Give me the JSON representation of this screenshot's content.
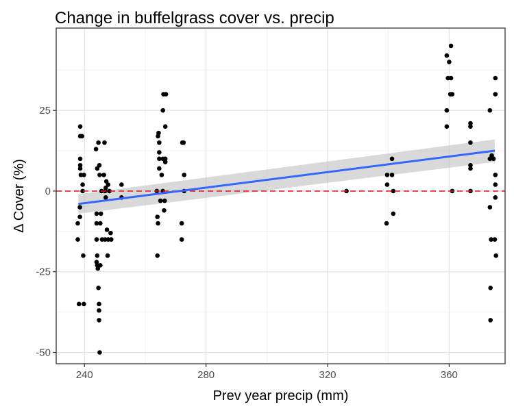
{
  "chart_data": {
    "type": "scatter",
    "title": "Change in buffelgrass cover vs. precip",
    "xlabel": "Prev year precip (mm)",
    "ylabel": "Δ Cover (%)",
    "xlim": [
      230.7,
      378.4
    ],
    "ylim": [
      -53.5,
      50.5
    ],
    "x_ticks": [
      240,
      280,
      320,
      360
    ],
    "y_ticks": [
      -50,
      -25,
      0,
      25
    ],
    "x_tick_labels": [
      "240",
      "280",
      "320",
      "360"
    ],
    "y_tick_labels": [
      "-50",
      "-25",
      "0",
      "25"
    ],
    "grid": true,
    "legend": "none",
    "reference_line": {
      "y": 0,
      "color": "#e41a1c",
      "style": "dashed"
    },
    "fit": {
      "method": "linear",
      "x": [
        238,
        375
      ],
      "y": [
        -4,
        12.5
      ],
      "ci_lower": [
        -7,
        9
      ],
      "ci_upper": [
        -1,
        16
      ],
      "color": "#3366ff",
      "band_color": "#bfbfbf"
    },
    "point_color": "#000000",
    "points": [
      [
        237.8,
        -10
      ],
      [
        237.8,
        -15
      ],
      [
        238.2,
        -35
      ],
      [
        238.5,
        -5
      ],
      [
        238.5,
        -8
      ],
      [
        238.6,
        20
      ],
      [
        238.6,
        17
      ],
      [
        238.6,
        10
      ],
      [
        238.6,
        8
      ],
      [
        238.6,
        7
      ],
      [
        238.8,
        5
      ],
      [
        239.2,
        17
      ],
      [
        239.4,
        2
      ],
      [
        239.4,
        0
      ],
      [
        239.6,
        -20
      ],
      [
        239.8,
        5
      ],
      [
        239.8,
        -35
      ],
      [
        243.8,
        13
      ],
      [
        244.0,
        -7
      ],
      [
        244.0,
        -10
      ],
      [
        244.0,
        -15
      ],
      [
        244.0,
        -22
      ],
      [
        244.2,
        -20
      ],
      [
        244.2,
        -23
      ],
      [
        244.2,
        7
      ],
      [
        244.4,
        -24
      ],
      [
        244.6,
        15
      ],
      [
        244.6,
        -30
      ],
      [
        244.8,
        -35
      ],
      [
        244.8,
        -37
      ],
      [
        244.8,
        -40
      ],
      [
        244.9,
        8
      ],
      [
        245.0,
        5
      ],
      [
        245.0,
        -50
      ],
      [
        245.2,
        -23
      ],
      [
        245.2,
        -10
      ],
      [
        245.4,
        -7
      ],
      [
        245.6,
        0
      ],
      [
        245.8,
        -15
      ],
      [
        246.4,
        5
      ],
      [
        246.6,
        15
      ],
      [
        246.8,
        -15
      ],
      [
        246.8,
        0
      ],
      [
        247.0,
        -2
      ],
      [
        247.0,
        1
      ],
      [
        247.2,
        3
      ],
      [
        247.4,
        -12
      ],
      [
        247.6,
        -20
      ],
      [
        247.8,
        -15
      ],
      [
        247.8,
        2
      ],
      [
        248.2,
        0
      ],
      [
        248.6,
        -13
      ],
      [
        248.8,
        -15
      ],
      [
        252.2,
        2
      ],
      [
        252.2,
        -2
      ],
      [
        263.8,
        0
      ],
      [
        264.0,
        -8
      ],
      [
        264.0,
        -20
      ],
      [
        264.2,
        -10
      ],
      [
        264.2,
        17
      ],
      [
        264.4,
        18
      ],
      [
        264.6,
        15
      ],
      [
        264.6,
        12
      ],
      [
        264.6,
        10
      ],
      [
        264.6,
        7
      ],
      [
        265.0,
        -3
      ],
      [
        265.4,
        5
      ],
      [
        265.8,
        0
      ],
      [
        265.8,
        10
      ],
      [
        265.8,
        25
      ],
      [
        266.0,
        30
      ],
      [
        266.2,
        -6
      ],
      [
        266.4,
        -3
      ],
      [
        266.6,
        9
      ],
      [
        266.6,
        10
      ],
      [
        266.6,
        20
      ],
      [
        266.8,
        30
      ],
      [
        272.0,
        -10
      ],
      [
        272.0,
        -15
      ],
      [
        272.2,
        15
      ],
      [
        272.6,
        15
      ],
      [
        272.8,
        5
      ],
      [
        272.8,
        0
      ],
      [
        326.2,
        0
      ],
      [
        339.4,
        -10
      ],
      [
        339.6,
        5
      ],
      [
        339.6,
        2
      ],
      [
        341.2,
        10
      ],
      [
        341.2,
        5
      ],
      [
        341.6,
        -7
      ],
      [
        341.6,
        0
      ],
      [
        359.2,
        42
      ],
      [
        359.2,
        25
      ],
      [
        359.2,
        20
      ],
      [
        359.6,
        35
      ],
      [
        360.0,
        40
      ],
      [
        360.4,
        30
      ],
      [
        360.6,
        35
      ],
      [
        360.6,
        45
      ],
      [
        361.0,
        30
      ],
      [
        361.0,
        0
      ],
      [
        367.0,
        21
      ],
      [
        367.0,
        15
      ],
      [
        367.0,
        20
      ],
      [
        367.0,
        8
      ],
      [
        367.0,
        7
      ],
      [
        367.0,
        0
      ],
      [
        373.4,
        -5
      ],
      [
        373.4,
        10
      ],
      [
        373.4,
        25
      ],
      [
        373.6,
        -30
      ],
      [
        373.6,
        -40
      ],
      [
        373.8,
        -15
      ],
      [
        374.0,
        11
      ],
      [
        374.6,
        10
      ],
      [
        375.0,
        -15
      ],
      [
        375.2,
        30
      ],
      [
        375.2,
        35
      ],
      [
        375.2,
        5
      ],
      [
        375.2,
        2
      ],
      [
        375.2,
        -2
      ],
      [
        375.4,
        -20
      ]
    ]
  }
}
